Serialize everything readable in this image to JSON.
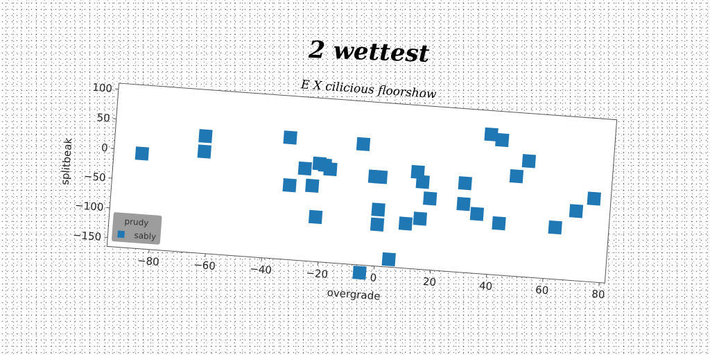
{
  "title": "2 wettest",
  "chart_data": {
    "type": "scatter",
    "title": "E X cilicious floorshow",
    "xlabel": "overgrade",
    "ylabel": "splitbeak",
    "xlim": [
      -95,
      82
    ],
    "ylim": [
      -165,
      110
    ],
    "xticks": [
      -80,
      -60,
      -40,
      -20,
      0,
      20,
      40,
      60,
      80
    ],
    "yticks": [
      100,
      50,
      0,
      -50,
      -100,
      -150
    ],
    "grid": false,
    "legend": {
      "title": "prudy",
      "placement": "lower-left",
      "entries": [
        "sably"
      ]
    },
    "marker_color": "#1f77b4",
    "series": [
      {
        "name": "sably",
        "points": [
          [
            -85,
            -5
          ],
          [
            -63,
            32
          ],
          [
            -63,
            6
          ],
          [
            -33,
            40
          ],
          [
            -32,
            -40
          ],
          [
            -27,
            -10
          ],
          [
            -24,
            -38
          ],
          [
            -22,
            0
          ],
          [
            -20,
            -2
          ],
          [
            -18,
            -8
          ],
          [
            -22,
            -90
          ],
          [
            -7,
            38
          ],
          [
            -2,
            -15
          ],
          [
            0,
            -15
          ],
          [
            0,
            -70
          ],
          [
            0,
            -95
          ],
          [
            -5,
            -178
          ],
          [
            5,
            -152
          ],
          [
            10,
            -90
          ],
          [
            13,
            -2
          ],
          [
            15,
            -18
          ],
          [
            15,
            -80
          ],
          [
            18,
            -45
          ],
          [
            30,
            -15
          ],
          [
            30,
            -50
          ],
          [
            35,
            -65
          ],
          [
            38,
            70
          ],
          [
            42,
            62
          ],
          [
            43,
            -78
          ],
          [
            48,
            3
          ],
          [
            52,
            30
          ],
          [
            63,
            -78
          ],
          [
            70,
            -48
          ],
          [
            76,
            -25
          ]
        ]
      }
    ]
  }
}
